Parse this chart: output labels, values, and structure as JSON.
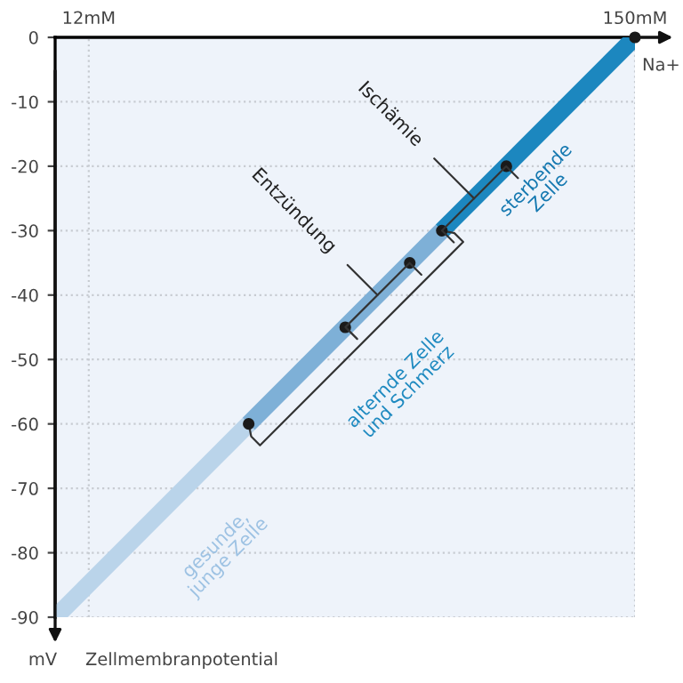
{
  "chart_data": {
    "type": "line",
    "xlabel": "Na+",
    "ylabel": "mV",
    "xlim": [
      3.5,
      150
    ],
    "ylim": [
      -90,
      0
    ],
    "xticks": [
      {
        "value": 12,
        "label": "12mM"
      },
      {
        "value": 150,
        "label": "150mM"
      }
    ],
    "yticks": [
      0,
      -10,
      -20,
      -30,
      -40,
      -50,
      -60,
      -70,
      -80,
      -90
    ],
    "grid": true,
    "series": [
      {
        "color": "#bad4ea",
        "x": [
          3.6,
          52.4
        ],
        "values": [
          -90,
          -60
        ]
      },
      {
        "color": "#7eb0d7",
        "x": [
          52.4,
          101.2
        ],
        "values": [
          -60,
          -30
        ]
      },
      {
        "color": "#1c87bf",
        "x": [
          101.2,
          150
        ],
        "values": [
          -30,
          0
        ]
      },
      {
        "type": "scatter",
        "color": "#1a1a1a",
        "x": [
          52.4,
          76.8,
          93.1,
          101.2,
          117.5,
          150
        ],
        "values": [
          -60,
          -45,
          -35,
          -30,
          -20,
          0
        ]
      }
    ],
    "annotations": [
      "gesunde,\njunge Zelle",
      "alternde Zelle\nund Schmerz",
      "sterbende\nZelle",
      {
        "text": "Entzündung",
        "x": 84.95,
        "y": -40
      },
      {
        "text": "Ischämie",
        "x": 109.35,
        "y": -25
      },
      "Zellmembranpotential"
    ]
  }
}
